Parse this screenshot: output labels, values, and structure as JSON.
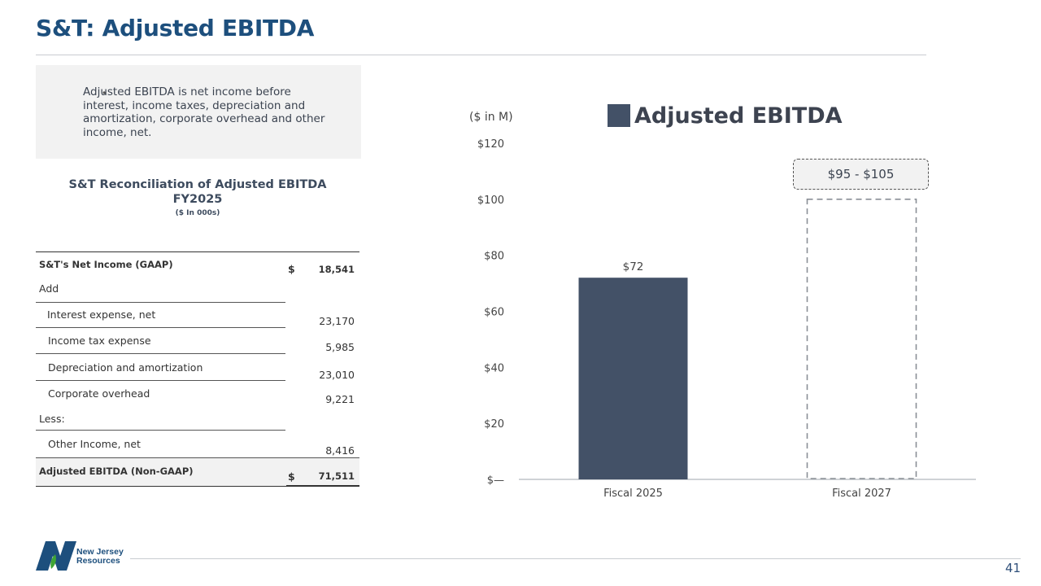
{
  "title": "S&T: Adjusted EBITDA",
  "bullet": "Adjusted EBITDA is net income before interest, income taxes, depreciation and amortization, corporate overhead and other income, net.",
  "reconciliation": {
    "title_line1": "S&T Reconciliation of Adjusted EBITDA",
    "title_line2": "FY2025",
    "subtitle": "($ In 000s)",
    "rows": [
      {
        "label": "S&T's Net Income (GAAP)",
        "currency": "$",
        "value": "18,541"
      },
      {
        "label": "Add",
        "currency": "",
        "value": ""
      },
      {
        "label": "Interest expense, net",
        "currency": "",
        "value": "23,170"
      },
      {
        "label": "Income tax expense",
        "currency": "",
        "value": "5,985"
      },
      {
        "label": "Depreciation and amortization",
        "currency": "",
        "value": "23,010"
      },
      {
        "label": "Corporate overhead",
        "currency": "",
        "value": "9,221"
      },
      {
        "label": "Less:",
        "currency": "",
        "value": ""
      },
      {
        "label": "Other Income, net",
        "currency": "",
        "value": "8,416"
      },
      {
        "label": "Adjusted EBITDA (Non-GAAP)",
        "currency": "$",
        "value": "71,511"
      }
    ]
  },
  "chart_data": {
    "type": "bar",
    "unit_label": "($ in M)",
    "legend": [
      "Adjusted EBITDA"
    ],
    "categories": [
      "Fiscal 2025",
      "Fiscal 2027"
    ],
    "values": [
      72,
      100
    ],
    "data_labels": [
      "$72",
      "$95 - $105"
    ],
    "range": [
      95,
      105
    ],
    "ylim": [
      0,
      120
    ],
    "yticks": [
      0,
      20,
      40,
      60,
      80,
      100,
      120
    ],
    "ytick_labels": [
      "$—",
      "$20",
      "$40",
      "$60",
      "$80",
      "$100",
      "$120"
    ],
    "bar_color": "#435167",
    "projected_style": "dashed-outline"
  },
  "logo": {
    "line1": "New Jersey",
    "line2": "Resources"
  },
  "page_number": "41"
}
